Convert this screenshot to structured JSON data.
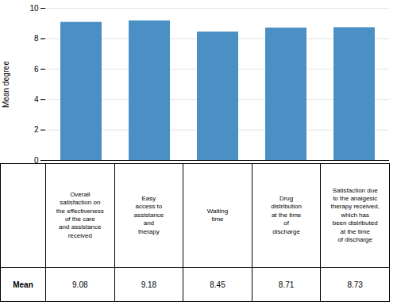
{
  "chart_data": {
    "type": "bar",
    "categories": [
      "Overall\nsatisfaction on\nthe effectiveness\nof the care\nand assistance\nreceived",
      "Easy\naccess to\nassistance\nand\ntherapy",
      "Waiting\ntime",
      "Drug\ndistribution\nat the time\nof\ndischarge",
      "Satisfaction due\nto the analgesic\ntherapy received,\nwhich has\nbeen distributed\nat the time\nof discharge"
    ],
    "values": [
      9.08,
      9.18,
      8.45,
      8.71,
      8.73
    ],
    "color": "#4a90c4",
    "ylabel": "Mean degree",
    "ylim": [
      0,
      10
    ],
    "yticks": [
      0,
      2,
      4,
      6,
      8,
      10
    ],
    "grid": true,
    "data_labels": true,
    "table_header": "Mean"
  }
}
